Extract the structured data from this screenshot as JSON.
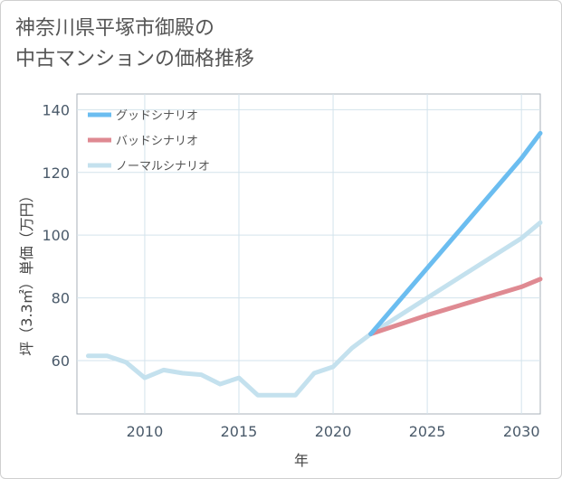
{
  "title_line1": "神奈川県平塚市御殿の",
  "title_line2": "中古マンションの価格推移",
  "chart_data": {
    "type": "line",
    "title": "神奈川県平塚市御殿の中古マンションの価格推移",
    "xlabel": "年",
    "ylabel": "坪（3.3㎡）単価（万円）",
    "xlim": [
      2006.4,
      2031
    ],
    "ylim": [
      43,
      145
    ],
    "xticks": [
      2010,
      2015,
      2020,
      2025,
      2030
    ],
    "yticks": [
      60,
      80,
      100,
      120,
      140
    ],
    "grid": true,
    "legend_position": "top-left",
    "series": [
      {
        "name": "グッドシナリオ",
        "color": "#6bbdf0",
        "x": [
          2022,
          2025,
          2030,
          2031
        ],
        "y": [
          68.5,
          89.5,
          124.5,
          132.5
        ]
      },
      {
        "name": "バッドシナリオ",
        "color": "#df8a92",
        "x": [
          2022,
          2025,
          2030,
          2031
        ],
        "y": [
          68.5,
          74.5,
          83.5,
          86
        ]
      },
      {
        "name": "ノーマルシナリオ",
        "color": "#c4e1ee",
        "x": [
          2007,
          2008,
          2009,
          2010,
          2011,
          2012,
          2013,
          2014,
          2015,
          2016,
          2017,
          2018,
          2019,
          2020,
          2021,
          2022,
          2025,
          2030,
          2031
        ],
        "y": [
          61.5,
          61.5,
          59.5,
          54.5,
          57,
          56,
          55.5,
          52.5,
          54.5,
          49,
          49,
          49,
          56,
          58,
          64,
          68.5,
          80,
          99,
          104
        ]
      }
    ]
  }
}
